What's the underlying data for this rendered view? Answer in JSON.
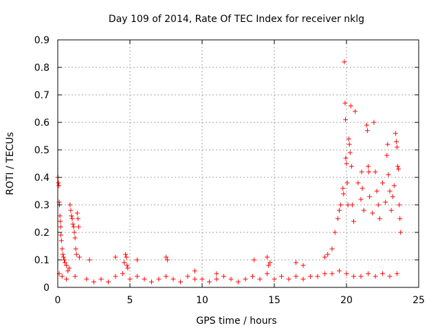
{
  "chart_data": {
    "type": "scatter",
    "title": "Day 109 of 2014, Rate Of TEC Index for receiver nklg",
    "xlabel": "GPS time / hours",
    "ylabel": "ROTI / TECUs",
    "xlim": [
      0,
      25
    ],
    "ylim": [
      0,
      0.9
    ],
    "xticks": [
      0,
      5,
      10,
      15,
      20,
      25
    ],
    "yticks": [
      0,
      0.1,
      0.2,
      0.3,
      0.4,
      0.5,
      0.6,
      0.7,
      0.8,
      0.9
    ],
    "xtick_labels": [
      "0",
      "5",
      "10",
      "15",
      "20",
      "25"
    ],
    "ytick_labels": [
      "0",
      "0.1",
      "0.2",
      "0.3",
      "0.4",
      "0.5",
      "0.6",
      "0.7",
      "0.8",
      "0.9"
    ],
    "grid": true,
    "marker": "+",
    "color": "#ff0000",
    "series": [
      {
        "name": "ROTI",
        "points": [
          [
            0.02,
            0.4
          ],
          [
            0.05,
            0.38
          ],
          [
            0.08,
            0.37
          ],
          [
            0.1,
            0.31
          ],
          [
            0.12,
            0.3
          ],
          [
            0.15,
            0.26
          ],
          [
            0.18,
            0.24
          ],
          [
            0.2,
            0.22
          ],
          [
            0.22,
            0.19
          ],
          [
            0.25,
            0.17
          ],
          [
            0.3,
            0.14
          ],
          [
            0.35,
            0.12
          ],
          [
            0.4,
            0.11
          ],
          [
            0.45,
            0.1
          ],
          [
            0.5,
            0.09
          ],
          [
            0.6,
            0.08
          ],
          [
            0.7,
            0.06
          ],
          [
            0.8,
            0.07
          ],
          [
            0.85,
            0.3
          ],
          [
            0.9,
            0.28
          ],
          [
            0.95,
            0.26
          ],
          [
            1.0,
            0.25
          ],
          [
            1.05,
            0.23
          ],
          [
            1.1,
            0.22
          ],
          [
            1.15,
            0.2
          ],
          [
            1.2,
            0.18
          ],
          [
            1.25,
            0.14
          ],
          [
            1.3,
            0.12
          ],
          [
            1.35,
            0.27
          ],
          [
            1.4,
            0.25
          ],
          [
            1.45,
            0.22
          ],
          [
            1.5,
            0.11
          ],
          [
            2.2,
            0.1
          ],
          [
            4.0,
            0.11
          ],
          [
            4.6,
            0.09
          ],
          [
            4.7,
            0.12
          ],
          [
            4.75,
            0.11
          ],
          [
            4.8,
            0.08
          ],
          [
            4.85,
            0.07
          ],
          [
            5.5,
            0.1
          ],
          [
            7.5,
            0.11
          ],
          [
            7.6,
            0.1
          ],
          [
            9.5,
            0.06
          ],
          [
            11.0,
            0.05
          ],
          [
            13.6,
            0.1
          ],
          [
            14.5,
            0.11
          ],
          [
            14.6,
            0.08
          ],
          [
            14.7,
            0.09
          ],
          [
            16.5,
            0.09
          ],
          [
            17.0,
            0.08
          ],
          [
            18.5,
            0.11
          ],
          [
            18.7,
            0.12
          ],
          [
            19.0,
            0.14
          ],
          [
            19.2,
            0.2
          ],
          [
            19.4,
            0.25
          ],
          [
            19.5,
            0.28
          ],
          [
            19.6,
            0.3
          ],
          [
            19.75,
            0.36
          ],
          [
            19.8,
            0.34
          ],
          [
            19.85,
            0.82
          ],
          [
            19.9,
            0.67
          ],
          [
            19.93,
            0.61
          ],
          [
            19.95,
            0.47
          ],
          [
            20.0,
            0.45
          ],
          [
            20.05,
            0.38
          ],
          [
            20.1,
            0.3
          ],
          [
            20.15,
            0.54
          ],
          [
            20.2,
            0.52
          ],
          [
            20.25,
            0.49
          ],
          [
            20.3,
            0.66
          ],
          [
            20.35,
            0.44
          ],
          [
            20.4,
            0.3
          ],
          [
            20.5,
            0.24
          ],
          [
            20.6,
            0.64
          ],
          [
            20.8,
            0.38
          ],
          [
            21.0,
            0.32
          ],
          [
            21.05,
            0.42
          ],
          [
            21.1,
            0.36
          ],
          [
            21.2,
            0.28
          ],
          [
            21.4,
            0.59
          ],
          [
            21.45,
            0.57
          ],
          [
            21.5,
            0.44
          ],
          [
            21.55,
            0.42
          ],
          [
            21.6,
            0.33
          ],
          [
            21.8,
            0.27
          ],
          [
            21.9,
            0.6
          ],
          [
            22.0,
            0.42
          ],
          [
            22.1,
            0.35
          ],
          [
            22.2,
            0.3
          ],
          [
            22.3,
            0.25
          ],
          [
            22.5,
            0.38
          ],
          [
            22.7,
            0.31
          ],
          [
            22.8,
            0.48
          ],
          [
            22.85,
            0.52
          ],
          [
            22.9,
            0.41
          ],
          [
            23.0,
            0.35
          ],
          [
            23.1,
            0.28
          ],
          [
            23.2,
            0.33
          ],
          [
            23.3,
            0.37
          ],
          [
            23.4,
            0.56
          ],
          [
            23.45,
            0.53
          ],
          [
            23.5,
            0.51
          ],
          [
            23.55,
            0.44
          ],
          [
            23.6,
            0.43
          ],
          [
            23.65,
            0.3
          ],
          [
            23.7,
            0.25
          ],
          [
            23.75,
            0.2
          ]
        ],
        "background_points": [
          [
            0.1,
            0.05
          ],
          [
            0.3,
            0.04
          ],
          [
            0.6,
            0.03
          ],
          [
            1.2,
            0.04
          ],
          [
            2.0,
            0.03
          ],
          [
            2.5,
            0.02
          ],
          [
            3.0,
            0.03
          ],
          [
            3.5,
            0.02
          ],
          [
            4.0,
            0.04
          ],
          [
            4.5,
            0.05
          ],
          [
            5.0,
            0.03
          ],
          [
            5.5,
            0.04
          ],
          [
            6.0,
            0.03
          ],
          [
            6.5,
            0.02
          ],
          [
            7.0,
            0.03
          ],
          [
            7.5,
            0.04
          ],
          [
            8.0,
            0.03
          ],
          [
            8.5,
            0.02
          ],
          [
            9.0,
            0.04
          ],
          [
            9.5,
            0.03
          ],
          [
            10.0,
            0.03
          ],
          [
            10.5,
            0.02
          ],
          [
            11.0,
            0.03
          ],
          [
            11.5,
            0.04
          ],
          [
            12.0,
            0.03
          ],
          [
            12.5,
            0.02
          ],
          [
            13.0,
            0.03
          ],
          [
            13.5,
            0.04
          ],
          [
            14.0,
            0.03
          ],
          [
            14.5,
            0.05
          ],
          [
            15.0,
            0.03
          ],
          [
            15.5,
            0.04
          ],
          [
            16.0,
            0.03
          ],
          [
            16.5,
            0.04
          ],
          [
            17.0,
            0.03
          ],
          [
            17.5,
            0.04
          ],
          [
            18.0,
            0.04
          ],
          [
            18.5,
            0.05
          ],
          [
            19.0,
            0.05
          ],
          [
            19.5,
            0.06
          ],
          [
            20.0,
            0.05
          ],
          [
            20.5,
            0.04
          ],
          [
            21.0,
            0.04
          ],
          [
            21.5,
            0.05
          ],
          [
            22.0,
            0.04
          ],
          [
            22.5,
            0.05
          ],
          [
            23.0,
            0.04
          ],
          [
            23.5,
            0.05
          ]
        ]
      }
    ]
  }
}
